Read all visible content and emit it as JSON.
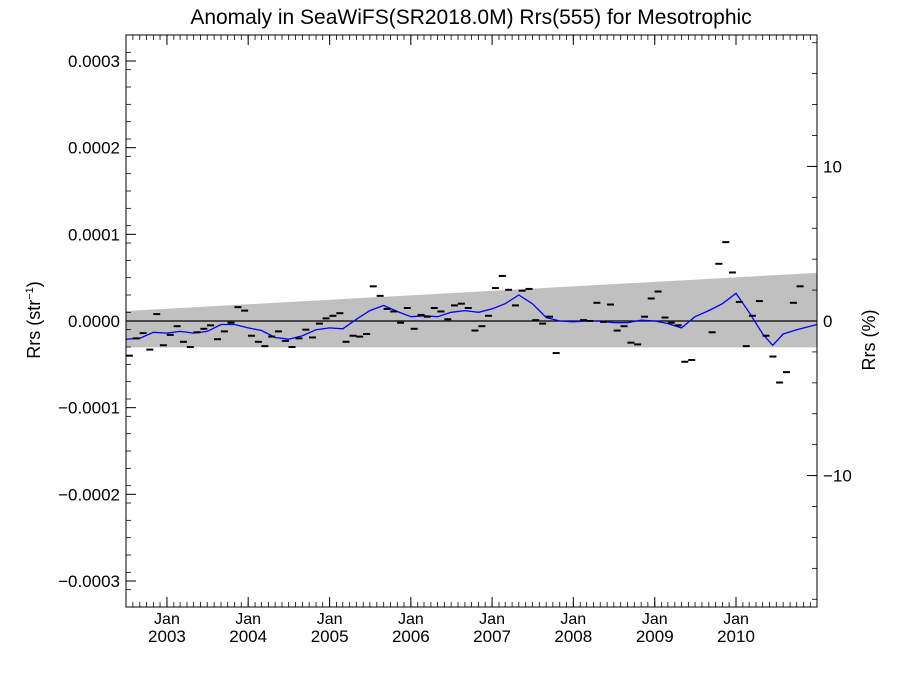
{
  "chart_data": {
    "type": "scatter",
    "title": "Anomaly in SeaWiFS(SR2018.0M) Rrs(555) for Mesotrophic",
    "ylabel_left": "Rrs (str",
    "ylabel_left_sup": "−1",
    "ylabel_left_close": ")",
    "ylabel_right": "Rrs (%)",
    "ylim": [
      -0.00033,
      0.00033
    ],
    "xlim": [
      "2002-07-01",
      "2010-12-31"
    ],
    "y2lim": [
      -18.5,
      18.5
    ],
    "left_ticks": [
      {
        "value": 0.0003,
        "label": "0.0003"
      },
      {
        "value": 0.0002,
        "label": "0.0002"
      },
      {
        "value": 0.0001,
        "label": "0.0001"
      },
      {
        "value": 0.0,
        "label": "0.0000"
      },
      {
        "value": -0.0001,
        "label": "−0.0001"
      },
      {
        "value": -0.0002,
        "label": "−0.0002"
      },
      {
        "value": -0.0003,
        "label": "−0.0003"
      }
    ],
    "right_ticks": [
      {
        "value": 10,
        "label": "10"
      },
      {
        "value": 0,
        "label": "0"
      },
      {
        "value": -10,
        "label": "−10"
      }
    ],
    "x_ticks": [
      {
        "date": "2003-01-01",
        "month": "Jan",
        "year": "2003"
      },
      {
        "date": "2004-01-01",
        "month": "Jan",
        "year": "2004"
      },
      {
        "date": "2005-01-01",
        "month": "Jan",
        "year": "2005"
      },
      {
        "date": "2006-01-01",
        "month": "Jan",
        "year": "2006"
      },
      {
        "date": "2007-01-01",
        "month": "Jan",
        "year": "2007"
      },
      {
        "date": "2008-01-01",
        "month": "Jan",
        "year": "2008"
      },
      {
        "date": "2009-01-01",
        "month": "Jan",
        "year": "2009"
      },
      {
        "date": "2010-01-01",
        "month": "Jan",
        "year": "2010"
      }
    ],
    "band": {
      "x": [
        "2002-07-01",
        "2010-12-31"
      ],
      "upper": [
        1.15e-05,
        5.55e-05
      ],
      "lower": [
        -3.05e-05,
        -3.05e-05
      ],
      "color": "#c0c0c0"
    },
    "zero_line": 0,
    "monthly_points": [
      {
        "x": "2002-07-16",
        "y": -4e-05
      },
      {
        "x": "2002-08-16",
        "y": -2e-05
      },
      {
        "x": "2002-09-16",
        "y": -1.4e-05
      },
      {
        "x": "2002-10-16",
        "y": -3.3e-05
      },
      {
        "x": "2002-11-16",
        "y": 8e-06
      },
      {
        "x": "2002-12-16",
        "y": -2.8e-05
      },
      {
        "x": "2003-01-16",
        "y": -1.6e-05
      },
      {
        "x": "2003-02-16",
        "y": -6e-06
      },
      {
        "x": "2003-03-16",
        "y": -2.4e-05
      },
      {
        "x": "2003-04-16",
        "y": -3e-05
      },
      {
        "x": "2003-05-16",
        "y": -1.3e-05
      },
      {
        "x": "2003-06-16",
        "y": -9e-06
      },
      {
        "x": "2003-07-16",
        "y": -5e-06
      },
      {
        "x": "2003-08-16",
        "y": -2.1e-05
      },
      {
        "x": "2003-09-16",
        "y": -1.2e-05
      },
      {
        "x": "2003-10-16",
        "y": -2e-06
      },
      {
        "x": "2003-11-16",
        "y": 1.6e-05
      },
      {
        "x": "2003-12-16",
        "y": 1.2e-05
      },
      {
        "x": "2004-01-16",
        "y": -1.7e-05
      },
      {
        "x": "2004-02-16",
        "y": -2.4e-05
      },
      {
        "x": "2004-03-16",
        "y": -2.9e-05
      },
      {
        "x": "2004-04-16",
        "y": -1.8e-05
      },
      {
        "x": "2004-05-16",
        "y": -1.2e-05
      },
      {
        "x": "2004-06-16",
        "y": -2.3e-05
      },
      {
        "x": "2004-07-16",
        "y": -3e-05
      },
      {
        "x": "2004-08-16",
        "y": -2e-05
      },
      {
        "x": "2004-09-16",
        "y": -1e-05
      },
      {
        "x": "2004-10-16",
        "y": -1.9e-05
      },
      {
        "x": "2004-11-16",
        "y": -3e-06
      },
      {
        "x": "2004-12-16",
        "y": 3e-06
      },
      {
        "x": "2005-01-16",
        "y": 6e-06
      },
      {
        "x": "2005-02-16",
        "y": 9e-06
      },
      {
        "x": "2005-03-16",
        "y": -2.4e-05
      },
      {
        "x": "2005-04-16",
        "y": -1.7e-05
      },
      {
        "x": "2005-05-16",
        "y": -1.8e-05
      },
      {
        "x": "2005-06-16",
        "y": -1.5e-05
      },
      {
        "x": "2005-07-16",
        "y": 4e-05
      },
      {
        "x": "2005-08-16",
        "y": 2.9e-05
      },
      {
        "x": "2005-09-16",
        "y": 1.4e-05
      },
      {
        "x": "2005-10-16",
        "y": 1.1e-05
      },
      {
        "x": "2005-11-16",
        "y": -2e-06
      },
      {
        "x": "2005-12-16",
        "y": 1.5e-05
      },
      {
        "x": "2006-01-16",
        "y": -9e-06
      },
      {
        "x": "2006-02-16",
        "y": 7e-06
      },
      {
        "x": "2006-03-16",
        "y": 5e-06
      },
      {
        "x": "2006-04-16",
        "y": 1.5e-05
      },
      {
        "x": "2006-05-16",
        "y": 1.1e-05
      },
      {
        "x": "2006-06-16",
        "y": 2e-06
      },
      {
        "x": "2006-07-16",
        "y": 1.8e-05
      },
      {
        "x": "2006-08-16",
        "y": 2e-05
      },
      {
        "x": "2006-09-16",
        "y": 1.5e-05
      },
      {
        "x": "2006-10-16",
        "y": -1.1e-05
      },
      {
        "x": "2006-11-16",
        "y": -6e-06
      },
      {
        "x": "2006-12-16",
        "y": 6e-06
      },
      {
        "x": "2007-01-16",
        "y": 3.8e-05
      },
      {
        "x": "2007-02-16",
        "y": 5.2e-05
      },
      {
        "x": "2007-03-16",
        "y": 3.6e-05
      },
      {
        "x": "2007-04-16",
        "y": 1.8e-05
      },
      {
        "x": "2007-05-16",
        "y": 3.5e-05
      },
      {
        "x": "2007-06-16",
        "y": 3.7e-05
      },
      {
        "x": "2007-07-16",
        "y": 1e-06
      },
      {
        "x": "2007-08-16",
        "y": -3e-06
      },
      {
        "x": "2007-09-16",
        "y": 5e-06
      },
      {
        "x": "2007-10-16",
        "y": -3.7e-05
      },
      {
        "x": "2008-02-16",
        "y": 1e-06
      },
      {
        "x": "2008-03-16",
        "y": 0.0
      },
      {
        "x": "2008-04-16",
        "y": 2.1e-05
      },
      {
        "x": "2008-05-16",
        "y": -1e-06
      },
      {
        "x": "2008-06-16",
        "y": 1.9e-05
      },
      {
        "x": "2008-07-16",
        "y": -1.1e-05
      },
      {
        "x": "2008-08-16",
        "y": -6e-06
      },
      {
        "x": "2008-09-16",
        "y": -2.5e-05
      },
      {
        "x": "2008-10-16",
        "y": -2.7e-05
      },
      {
        "x": "2008-11-16",
        "y": 5e-06
      },
      {
        "x": "2008-12-16",
        "y": 2.6e-05
      },
      {
        "x": "2009-01-16",
        "y": 3.4e-05
      },
      {
        "x": "2009-02-16",
        "y": 4e-06
      },
      {
        "x": "2009-03-16",
        "y": -2e-06
      },
      {
        "x": "2009-04-16",
        "y": -5e-06
      },
      {
        "x": "2009-05-16",
        "y": -4.7e-05
      },
      {
        "x": "2009-06-16",
        "y": -4.5e-05
      },
      {
        "x": "2009-09-16",
        "y": -1.3e-05
      },
      {
        "x": "2009-10-16",
        "y": 6.6e-05
      },
      {
        "x": "2009-11-16",
        "y": 9.1e-05
      },
      {
        "x": "2009-12-16",
        "y": 5.6e-05
      },
      {
        "x": "2010-01-16",
        "y": 2.2e-05
      },
      {
        "x": "2010-02-16",
        "y": -2.9e-05
      },
      {
        "x": "2010-03-16",
        "y": 6e-06
      },
      {
        "x": "2010-04-16",
        "y": 2.3e-05
      },
      {
        "x": "2010-05-16",
        "y": -1.7e-05
      },
      {
        "x": "2010-06-16",
        "y": -4.1e-05
      },
      {
        "x": "2010-07-16",
        "y": -7.1e-05
      },
      {
        "x": "2010-08-16",
        "y": -5.9e-05
      },
      {
        "x": "2010-09-16",
        "y": 2.1e-05
      },
      {
        "x": "2010-10-16",
        "y": 4e-05
      }
    ],
    "smoothed_line": {
      "color": "#0000ff",
      "points": [
        {
          "x": "2002-07-01",
          "y": -2.1e-05
        },
        {
          "x": "2002-09-01",
          "y": -2e-05
        },
        {
          "x": "2002-11-01",
          "y": -1.3e-05
        },
        {
          "x": "2003-01-01",
          "y": -1.4e-05
        },
        {
          "x": "2003-03-01",
          "y": -1.2e-05
        },
        {
          "x": "2003-05-01",
          "y": -1.4e-05
        },
        {
          "x": "2003-07-01",
          "y": -1.2e-05
        },
        {
          "x": "2003-09-01",
          "y": -4e-06
        },
        {
          "x": "2003-11-01",
          "y": -4e-06
        },
        {
          "x": "2004-01-01",
          "y": -8e-06
        },
        {
          "x": "2004-03-01",
          "y": -1.1e-05
        },
        {
          "x": "2004-05-01",
          "y": -1.9e-05
        },
        {
          "x": "2004-07-01",
          "y": -2.1e-05
        },
        {
          "x": "2004-09-01",
          "y": -1.7e-05
        },
        {
          "x": "2004-11-01",
          "y": -1e-05
        },
        {
          "x": "2005-01-01",
          "y": -8e-06
        },
        {
          "x": "2005-03-01",
          "y": -9e-06
        },
        {
          "x": "2005-05-01",
          "y": 2e-06
        },
        {
          "x": "2005-07-01",
          "y": 1.2e-05
        },
        {
          "x": "2005-09-01",
          "y": 1.8e-05
        },
        {
          "x": "2005-11-01",
          "y": 1.1e-05
        },
        {
          "x": "2006-01-01",
          "y": 5e-06
        },
        {
          "x": "2006-03-01",
          "y": 6e-06
        },
        {
          "x": "2006-05-01",
          "y": 5e-06
        },
        {
          "x": "2006-07-01",
          "y": 1e-05
        },
        {
          "x": "2006-09-01",
          "y": 1.2e-05
        },
        {
          "x": "2006-11-01",
          "y": 1e-05
        },
        {
          "x": "2007-01-01",
          "y": 1.4e-05
        },
        {
          "x": "2007-03-01",
          "y": 2e-05
        },
        {
          "x": "2007-05-01",
          "y": 3e-05
        },
        {
          "x": "2007-07-01",
          "y": 2e-05
        },
        {
          "x": "2007-09-01",
          "y": 4e-06
        },
        {
          "x": "2007-11-01",
          "y": 0.0
        },
        {
          "x": "2008-01-01",
          "y": -1e-06
        },
        {
          "x": "2008-03-01",
          "y": 0.0
        },
        {
          "x": "2008-05-01",
          "y": 0.0
        },
        {
          "x": "2008-07-01",
          "y": -2e-06
        },
        {
          "x": "2008-09-01",
          "y": -2e-06
        },
        {
          "x": "2008-11-01",
          "y": 1e-06
        },
        {
          "x": "2009-01-01",
          "y": 0.0
        },
        {
          "x": "2009-03-01",
          "y": -3e-06
        },
        {
          "x": "2009-05-01",
          "y": -8e-06
        },
        {
          "x": "2009-07-01",
          "y": 5e-06
        },
        {
          "x": "2009-09-01",
          "y": 1.2e-05
        },
        {
          "x": "2009-11-01",
          "y": 2e-05
        },
        {
          "x": "2010-01-01",
          "y": 3.2e-05
        },
        {
          "x": "2010-03-01",
          "y": 1e-05
        },
        {
          "x": "2010-05-01",
          "y": -1.5e-05
        },
        {
          "x": "2010-06-15",
          "y": -2.8e-05
        },
        {
          "x": "2010-08-01",
          "y": -1.5e-05
        },
        {
          "x": "2010-10-01",
          "y": -1e-05
        },
        {
          "x": "2010-12-31",
          "y": -4e-06
        }
      ]
    },
    "grid": false,
    "legend": "none"
  }
}
